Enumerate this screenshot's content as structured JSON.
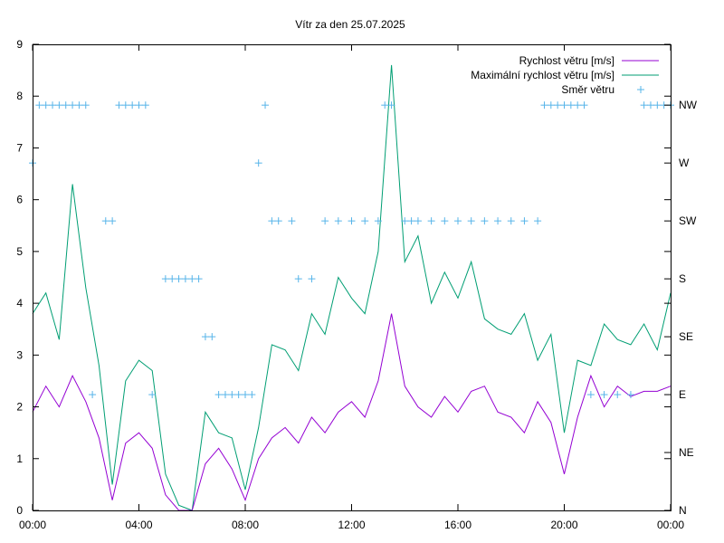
{
  "chart_data": {
    "type": "line",
    "title": "Vítr za den 25.07.2025",
    "x_ticks": [
      "00:00",
      "04:00",
      "08:00",
      "12:00",
      "16:00",
      "20:00",
      "00:00"
    ],
    "xlim_hours": [
      0,
      24
    ],
    "y_ticks": [
      "0",
      "1",
      "2",
      "3",
      "4",
      "5",
      "6",
      "7",
      "8",
      "9"
    ],
    "ylim": [
      0,
      9
    ],
    "y2_ticks": [
      "N",
      "NE",
      "E",
      "SE",
      "S",
      "SW",
      "W",
      "NW"
    ],
    "y2_values_deg": [
      0,
      45,
      90,
      135,
      180,
      225,
      270,
      315
    ],
    "grid": false,
    "legend_position": "top-right",
    "colors": {
      "speed": "#9400d3",
      "gust": "#009e73",
      "direction": "#56b4e9"
    },
    "series": [
      {
        "name": "Rychlost větru [m/s]",
        "style": "line",
        "x": [
          0,
          0.5,
          1,
          1.5,
          2,
          2.5,
          3,
          3.5,
          4,
          4.5,
          5,
          5.5,
          6,
          6.5,
          7,
          7.5,
          8,
          8.5,
          9,
          9.5,
          10,
          10.5,
          11,
          11.5,
          12,
          12.5,
          13,
          13.5,
          14,
          14.5,
          15,
          15.5,
          16,
          16.5,
          17,
          17.5,
          18,
          18.5,
          19,
          19.5,
          20,
          20.5,
          21,
          21.5,
          22,
          22.5,
          23,
          23.5,
          24
        ],
        "values": [
          1.9,
          2.4,
          2.0,
          2.6,
          2.1,
          1.4,
          0.2,
          1.3,
          1.5,
          1.2,
          0.3,
          0.0,
          0.0,
          0.9,
          1.2,
          0.8,
          0.2,
          1.0,
          1.4,
          1.6,
          1.3,
          1.8,
          1.5,
          1.9,
          2.1,
          1.8,
          2.5,
          3.8,
          2.4,
          2.0,
          1.8,
          2.2,
          1.9,
          2.3,
          2.4,
          1.9,
          1.8,
          1.5,
          2.1,
          1.7,
          0.7,
          1.8,
          2.6,
          2.0,
          2.4,
          2.2,
          2.3,
          2.3,
          2.4
        ]
      },
      {
        "name": "Maximální rychlost větru [m/s]",
        "style": "line",
        "x": [
          0,
          0.5,
          1,
          1.5,
          2,
          2.5,
          3,
          3.5,
          4,
          4.5,
          5,
          5.5,
          6,
          6.5,
          7,
          7.5,
          8,
          8.5,
          9,
          9.5,
          10,
          10.5,
          11,
          11.5,
          12,
          12.5,
          13,
          13.5,
          14,
          14.5,
          15,
          15.5,
          16,
          16.5,
          17,
          17.5,
          18,
          18.5,
          19,
          19.5,
          20,
          20.5,
          21,
          21.5,
          22,
          22.5,
          23,
          23.5,
          24
        ],
        "values": [
          3.8,
          4.2,
          3.3,
          6.3,
          4.3,
          2.8,
          0.5,
          2.5,
          2.9,
          2.7,
          0.7,
          0.1,
          0.0,
          1.9,
          1.5,
          1.4,
          0.4,
          1.6,
          3.2,
          3.1,
          2.7,
          3.8,
          3.4,
          4.5,
          4.1,
          3.8,
          5.0,
          8.6,
          4.8,
          5.3,
          4.0,
          4.6,
          4.1,
          4.8,
          3.7,
          3.5,
          3.4,
          3.8,
          2.9,
          3.4,
          1.5,
          2.9,
          2.8,
          3.6,
          3.3,
          3.2,
          3.6,
          3.1,
          4.2
        ]
      },
      {
        "name": "Směr větru",
        "style": "points",
        "x": [
          0,
          0.25,
          0.5,
          0.75,
          1,
          1.25,
          1.5,
          1.75,
          2,
          2.25,
          2.75,
          3,
          3.25,
          3.5,
          3.75,
          4,
          4.25,
          4.5,
          5,
          5.25,
          5.5,
          5.75,
          6,
          6.25,
          6.5,
          6.75,
          7,
          7.25,
          7.5,
          7.75,
          8,
          8.25,
          8.5,
          8.75,
          9,
          9.25,
          9.75,
          10,
          10.5,
          11,
          11.5,
          12,
          12.5,
          13,
          13.25,
          13.5,
          14,
          14.25,
          14.5,
          15,
          15.5,
          16,
          16.5,
          17,
          17.5,
          18,
          18.5,
          19,
          19.25,
          19.5,
          19.75,
          20,
          20.25,
          20.5,
          20.75,
          21,
          21.5,
          22,
          22.5,
          23,
          23.25,
          23.5,
          23.75,
          24
        ],
        "values": [
          270,
          315,
          315,
          315,
          315,
          315,
          315,
          315,
          315,
          90,
          225,
          225,
          315,
          315,
          315,
          315,
          315,
          90,
          180,
          180,
          180,
          180,
          180,
          180,
          135,
          135,
          90,
          90,
          90,
          90,
          90,
          90,
          270,
          315,
          225,
          225,
          225,
          180,
          180,
          225,
          225,
          225,
          225,
          225,
          315,
          315,
          225,
          225,
          225,
          225,
          225,
          225,
          225,
          225,
          225,
          225,
          225,
          225,
          315,
          315,
          315,
          315,
          315,
          315,
          315,
          90,
          90,
          90,
          90,
          315,
          315,
          315,
          315,
          315
        ]
      }
    ]
  }
}
